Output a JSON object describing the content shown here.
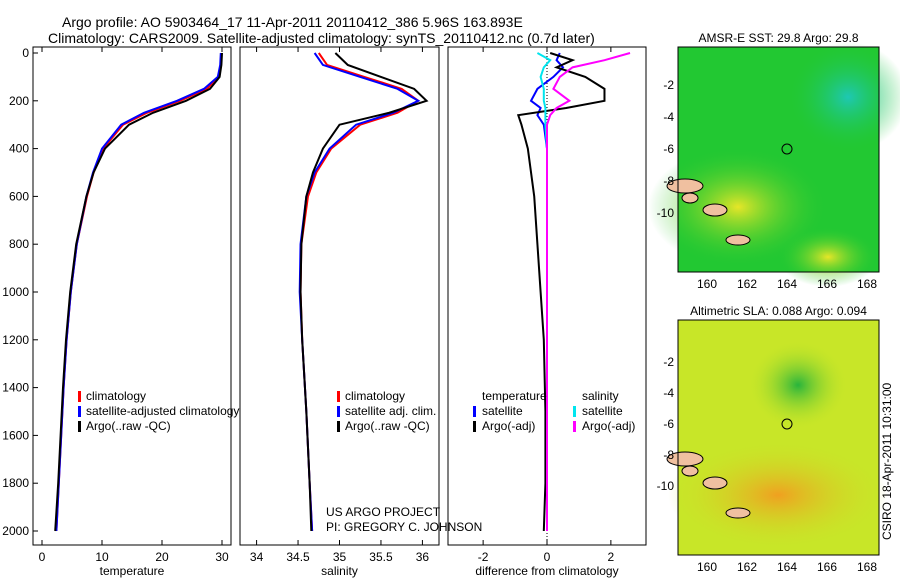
{
  "title_line1": "Argo profile: AO 5903464_17 11-Apr-2011 20110412_386 5.96S 163.893E",
  "title_line2": "Climatology: CARS2009. Satellite-adjusted climatology: synTS_20110412.nc (0.7d later)",
  "side_label": "CSIRO 18-Apr-2011 10:31:00",
  "project_line1": "US ARGO PROJECT",
  "project_line2": "PI: GREGORY C. JOHNSON",
  "colors": {
    "climatology": "#ff0000",
    "satellite": "#0000ff",
    "argo": "#000000",
    "sat_sal": "#00e5ee",
    "argo_sal": "#ff00ff"
  },
  "chart_data": [
    {
      "type": "line",
      "id": "temp",
      "xlabel": "temperature",
      "xlim": [
        -1.5,
        31.5
      ],
      "ylim": [
        2000,
        0
      ],
      "xticks": [
        0,
        10,
        20,
        30
      ],
      "yticks": [
        0,
        200,
        400,
        600,
        800,
        1000,
        1200,
        1400,
        1600,
        1800,
        2000
      ],
      "pressure": [
        0,
        50,
        100,
        150,
        200,
        250,
        300,
        400,
        500,
        600,
        800,
        1000,
        1200,
        1400,
        1600,
        1800,
        2000
      ],
      "series": [
        {
          "name": "climatology",
          "color": "#ff0000",
          "values": [
            29.9,
            29.8,
            29.4,
            27.5,
            23,
            17.5,
            13.5,
            10.2,
            8.6,
            7.5,
            5.8,
            4.8,
            4.1,
            3.6,
            3.2,
            2.8,
            2.4
          ]
        },
        {
          "name": "satellite-adjusted climatology",
          "color": "#0000ff",
          "values": [
            29.8,
            29.7,
            29.3,
            27,
            22.5,
            17,
            13.2,
            10,
            8.5,
            7.4,
            5.8,
            4.8,
            4.1,
            3.6,
            3.2,
            2.8,
            2.4
          ]
        },
        {
          "name": "Argo(..raw -QC)",
          "color": "#000000",
          "values": [
            30,
            29.9,
            29.6,
            28,
            24,
            18.5,
            14.5,
            10.5,
            8.6,
            7.4,
            5.7,
            4.7,
            4,
            3.5,
            3.1,
            2.7,
            2.2
          ]
        }
      ],
      "legend": [
        "climatology",
        "satellite-adjusted climatology",
        "Argo(..raw -QC)"
      ]
    },
    {
      "type": "line",
      "id": "sal",
      "xlabel": "salinity",
      "xlim": [
        33.8,
        36.2
      ],
      "ylim": [
        2000,
        0
      ],
      "xticks": [
        34,
        34.5,
        35,
        35.5,
        36
      ],
      "pressure": [
        0,
        50,
        100,
        150,
        200,
        250,
        300,
        400,
        500,
        600,
        800,
        1000,
        1200,
        1500,
        1800,
        2000
      ],
      "series": [
        {
          "name": "climatology",
          "color": "#ff0000",
          "values": [
            34.75,
            34.85,
            35.3,
            35.75,
            35.95,
            35.7,
            35.25,
            34.9,
            34.72,
            34.62,
            34.54,
            34.53,
            34.55,
            34.6,
            34.64,
            34.67
          ]
        },
        {
          "name": "satellite adj. clim.",
          "color": "#0000ff",
          "values": [
            34.7,
            34.8,
            35.25,
            35.7,
            35.95,
            35.65,
            35.2,
            34.88,
            34.7,
            34.6,
            34.53,
            34.52,
            34.55,
            34.6,
            34.64,
            34.67
          ]
        },
        {
          "name": "Argo(..raw -QC)",
          "color": "#000000",
          "values": [
            34.95,
            35.1,
            35.5,
            35.9,
            36.05,
            35.6,
            35.0,
            34.8,
            34.68,
            34.6,
            34.54,
            34.53,
            34.55,
            34.6,
            34.64,
            34.66
          ]
        }
      ],
      "legend": [
        "climatology",
        "satellite adj. clim.",
        "Argo(..raw -QC)"
      ]
    },
    {
      "type": "line",
      "id": "diff",
      "xlabel": "difference from climatology",
      "xlim": [
        -3.1,
        3.1
      ],
      "ylim": [
        2000,
        0
      ],
      "xticks": [
        -2,
        0,
        2
      ],
      "pressure": [
        0,
        30,
        60,
        100,
        150,
        200,
        230,
        260,
        300,
        400,
        600,
        800,
        1000,
        1200,
        1500,
        1800,
        2000
      ],
      "series": [
        {
          "name": "temperature satellite",
          "color": "#0000ff",
          "values": [
            0.4,
            0.3,
            0.5,
            0.2,
            -0.3,
            -0.5,
            -0.2,
            -0.3,
            -0.1,
            0,
            0,
            0,
            0,
            0,
            0,
            0,
            0
          ]
        },
        {
          "name": "temperature Argo(-adj)",
          "color": "#000000",
          "values": [
            0.1,
            0.8,
            0.3,
            1.2,
            1.8,
            1.8,
            0.6,
            -0.9,
            -0.8,
            -0.6,
            -0.4,
            -0.3,
            -0.2,
            -0.1,
            -0.05,
            -0.05,
            -0.1
          ]
        },
        {
          "name": "salinity satellite",
          "color": "#00e5ee",
          "values": [
            -0.3,
            0.1,
            -0.1,
            -0.2,
            -0.1,
            -0.1,
            -0.05,
            -0.05,
            -0.05,
            0,
            0,
            0,
            0,
            0,
            0,
            0,
            0
          ]
        },
        {
          "name": "salinity Argo(-adj)",
          "color": "#ff00ff",
          "values": [
            2.6,
            1.8,
            0.8,
            0.4,
            0.2,
            0.7,
            0.3,
            0.1,
            0,
            0,
            0,
            0,
            0,
            0,
            0,
            0,
            0
          ]
        }
      ],
      "legend_headers": [
        "temperature",
        "salinity"
      ],
      "legend": [
        "satellite",
        "Argo(-adj)",
        "satellite",
        "Argo(-adj)"
      ]
    }
  ],
  "maps": [
    {
      "title": "AMSR-E SST: 29.8 Argo: 29.8",
      "xticks": [
        160,
        162,
        164,
        166,
        168
      ],
      "yticks": [
        -2,
        -4,
        -6,
        -8,
        -10
      ],
      "marker": [
        164,
        -6
      ],
      "base": "#22c832"
    },
    {
      "title": "Altimetric SLA: 0.088 Argo: 0.094",
      "xticks": [
        160,
        162,
        164,
        166,
        168
      ],
      "yticks": [
        -2,
        -4,
        -6,
        -8,
        -10
      ],
      "marker": [
        164,
        -6
      ],
      "base": "#c8e628"
    }
  ]
}
